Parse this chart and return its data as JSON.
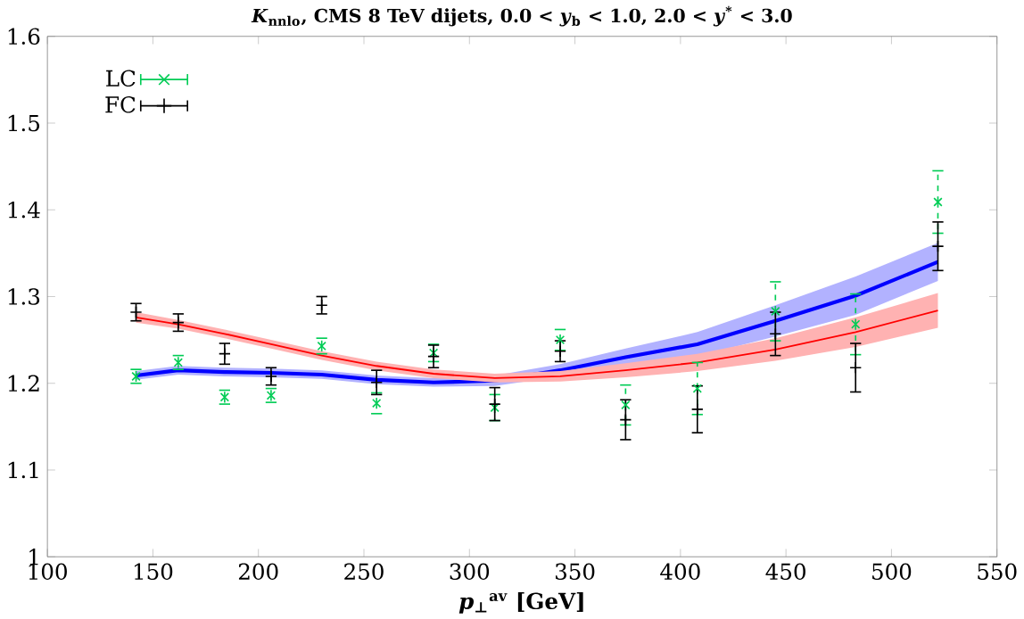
{
  "chart_data": {
    "type": "scatter",
    "title": "*K*$_{nnlo}$, CMS 8 TeV dijets, 0.0 < *y*$_{b}$ < 1.0, 2.0 < *y*$^{*}$ < 3.0",
    "xlabel": "*p*$_{⊥}$$^{av}$ [GeV]",
    "xlim": [
      100,
      550
    ],
    "xticks": [
      100,
      150,
      200,
      250,
      300,
      350,
      400,
      450,
      500,
      550
    ],
    "ylim": [
      1,
      1.6
    ],
    "yticks": [
      1,
      1.1,
      1.2,
      1.3,
      1.4,
      1.5,
      1.6
    ],
    "legend": "top left",
    "grid": false,
    "x": [
      142,
      162,
      184,
      206,
      230,
      256,
      283,
      312,
      343,
      374,
      408,
      445,
      483,
      522
    ],
    "series": [
      {
        "name": "LC",
        "type": "scatter",
        "marker": "cross",
        "color": "#00cc55",
        "line_style": "dashed",
        "values": [
          1.208,
          1.224,
          1.184,
          1.186,
          1.243,
          1.177,
          1.235,
          1.172,
          1.25,
          1.175,
          1.194,
          1.283,
          1.268,
          1.409
        ],
        "errors": [
          0.008,
          0.008,
          0.008,
          0.008,
          0.009,
          0.012,
          0.01,
          0.015,
          0.012,
          0.023,
          0.03,
          0.034,
          0.035,
          0.036
        ]
      },
      {
        "name": "FC",
        "type": "scatter",
        "marker": "plus",
        "color": "#000000",
        "values": [
          1.282,
          1.27,
          1.234,
          1.208,
          1.29,
          1.201,
          1.231,
          1.176,
          1.237,
          1.158,
          1.17,
          1.257,
          1.218,
          1.358
        ],
        "errors": [
          0.01,
          0.01,
          0.012,
          0.01,
          0.01,
          0.014,
          0.013,
          0.019,
          0.012,
          0.023,
          0.027,
          0.025,
          0.028,
          0.028
        ]
      },
      {
        "type": "line",
        "color": "#ff0000",
        "values": [
          1.276,
          1.268,
          1.257,
          1.245,
          1.232,
          1.22,
          1.211,
          1.206,
          1.208,
          1.215,
          1.224,
          1.239,
          1.259,
          1.284
        ],
        "lower": [
          1.27,
          1.263,
          1.252,
          1.24,
          1.227,
          1.215,
          1.206,
          1.201,
          1.202,
          1.207,
          1.214,
          1.226,
          1.242,
          1.264
        ],
        "upper": [
          1.282,
          1.273,
          1.262,
          1.25,
          1.237,
          1.225,
          1.216,
          1.211,
          1.214,
          1.223,
          1.234,
          1.252,
          1.276,
          1.304
        ]
      },
      {
        "type": "line",
        "color": "#0000ff",
        "values": [
          1.209,
          1.215,
          1.213,
          1.212,
          1.21,
          1.204,
          1.201,
          1.203,
          1.215,
          1.23,
          1.245,
          1.272,
          1.301,
          1.34
        ],
        "lower": [
          1.204,
          1.21,
          1.208,
          1.207,
          1.205,
          1.199,
          1.196,
          1.197,
          1.208,
          1.22,
          1.231,
          1.254,
          1.279,
          1.318
        ],
        "upper": [
          1.214,
          1.22,
          1.218,
          1.217,
          1.215,
          1.209,
          1.206,
          1.209,
          1.222,
          1.24,
          1.259,
          1.29,
          1.323,
          1.362
        ]
      }
    ]
  }
}
